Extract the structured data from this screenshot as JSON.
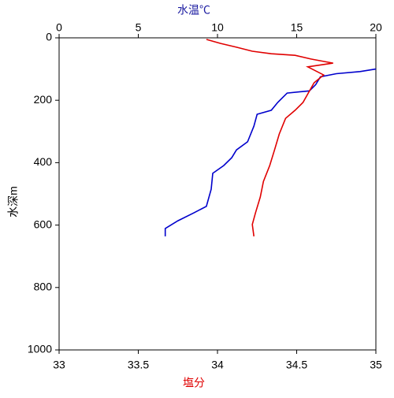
{
  "chart_data": {
    "type": "line",
    "x_label": "塩分",
    "x2_label": "水温℃",
    "y_label": "水深m",
    "xlim": [
      33,
      35
    ],
    "xticks": [
      33,
      33.5,
      34,
      34.5,
      35
    ],
    "x2lim": [
      0,
      20
    ],
    "x2ticks": [
      0,
      5,
      10,
      15,
      20
    ],
    "ylim": [
      0,
      1000
    ],
    "yticks": [
      0,
      200,
      400,
      600,
      800,
      1000
    ],
    "y_inverted": true,
    "x_label_color": "#e00000",
    "x2_label_color": "#1a1aa0",
    "series": [
      {
        "color": "#0000cc",
        "axis": "x2",
        "x": [
          20,
          19,
          17.5,
          16.5,
          16.2,
          15.8,
          14.4,
          13.8,
          13.4,
          12.5,
          12.3,
          11.9,
          11.2,
          10.9,
          10.4,
          9.7,
          9.6,
          9.3,
          8.5,
          7.5,
          6.7,
          6.7
        ],
        "y": [
          100,
          108,
          115,
          125,
          150,
          170,
          177,
          207,
          232,
          245,
          283,
          333,
          359,
          384,
          409,
          434,
          485,
          540,
          561,
          586,
          611,
          636
        ]
      },
      {
        "color": "#e00000",
        "axis": "x",
        "x": [
          33.93,
          34.02,
          34.12,
          34.22,
          34.34,
          34.49,
          34.59,
          34.73,
          34.57,
          34.67,
          34.61,
          34.54,
          34.49,
          34.43,
          34.39,
          34.36,
          34.33,
          34.29,
          34.27,
          34.24,
          34.22,
          34.23
        ],
        "y": [
          5,
          18,
          30,
          43,
          51,
          56,
          68,
          81,
          93,
          119,
          144,
          207,
          232,
          258,
          308,
          359,
          409,
          460,
          510,
          561,
          598,
          636
        ]
      }
    ]
  }
}
